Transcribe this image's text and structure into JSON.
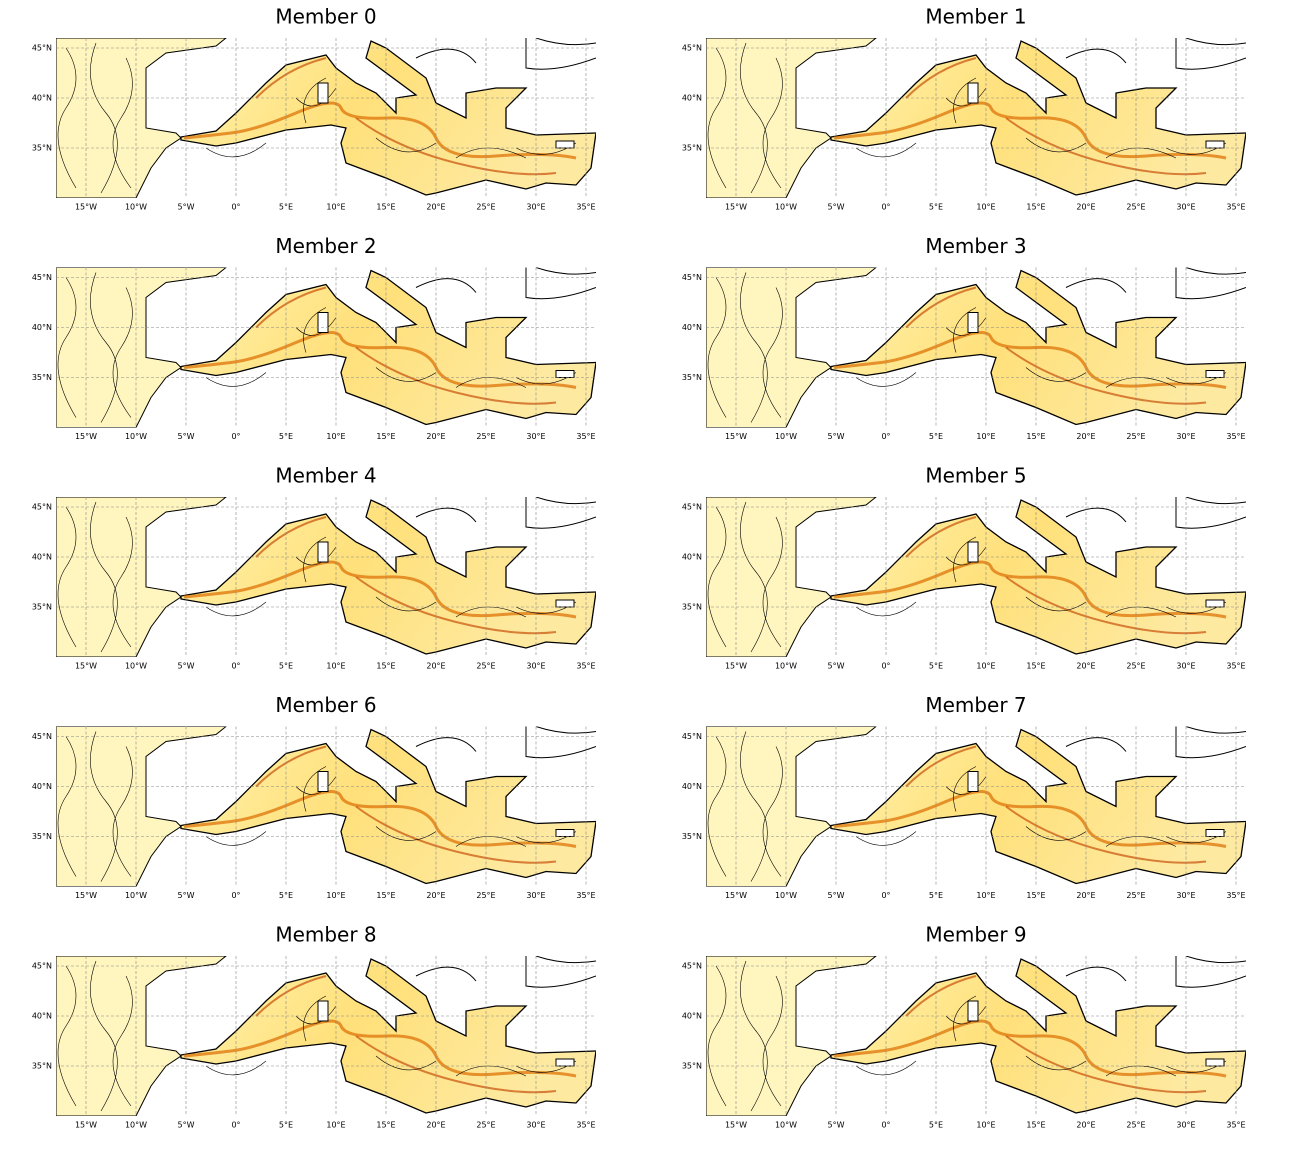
{
  "panels": [
    {
      "title": "Member 0"
    },
    {
      "title": "Member 1"
    },
    {
      "title": "Member 2"
    },
    {
      "title": "Member 3"
    },
    {
      "title": "Member 4"
    },
    {
      "title": "Member 5"
    },
    {
      "title": "Member 6"
    },
    {
      "title": "Member 7"
    },
    {
      "title": "Member 8"
    },
    {
      "title": "Member 9"
    }
  ],
  "map": {
    "xlim": [
      -18,
      36
    ],
    "ylim": [
      30,
      46
    ],
    "xticks": [
      {
        "value": -15,
        "label": "15°W"
      },
      {
        "value": -10,
        "label": "10°W"
      },
      {
        "value": -5,
        "label": "5°W"
      },
      {
        "value": 0,
        "label": "0°"
      },
      {
        "value": 5,
        "label": "5°E"
      },
      {
        "value": 10,
        "label": "10°E"
      },
      {
        "value": 15,
        "label": "15°E"
      },
      {
        "value": 20,
        "label": "20°E"
      },
      {
        "value": 25,
        "label": "25°E"
      },
      {
        "value": 30,
        "label": "30°E"
      },
      {
        "value": 35,
        "label": "35°E"
      }
    ],
    "yticks": [
      {
        "value": 35,
        "label": "35°N"
      },
      {
        "value": 40,
        "label": "40°N"
      },
      {
        "value": 45,
        "label": "45°N"
      }
    ]
  }
}
